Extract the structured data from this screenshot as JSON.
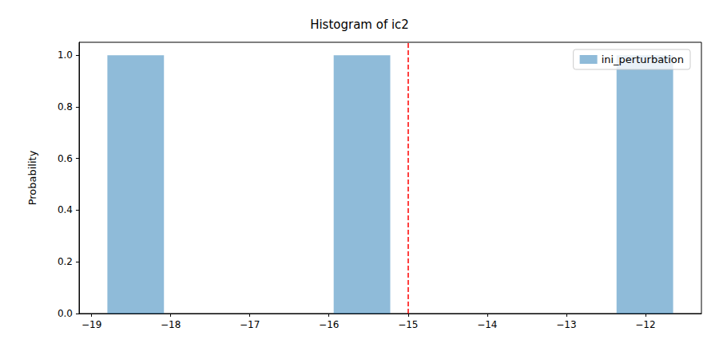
{
  "chart_data": {
    "type": "histogram",
    "title": "Histogram of ic2",
    "y_label": "Probability",
    "bins": [
      -18.8,
      -18.085,
      -17.37,
      -16.655,
      -15.94,
      -15.225,
      -14.51,
      -13.795,
      -13.08,
      -12.365,
      -11.65
    ],
    "series": [
      {
        "name": "ini_perturbation",
        "color": "#1f77b4",
        "values": [
          1,
          0,
          0,
          0,
          1,
          0,
          0,
          0,
          0,
          1
        ]
      }
    ],
    "reference_line": {
      "x": -15,
      "color": "#ff0000",
      "line_style": "dashed"
    },
    "xlim": [
      -19.1575,
      -11.2925
    ],
    "xticks": [
      {
        "value": -19,
        "label": "−19"
      },
      {
        "value": -18,
        "label": "−18"
      },
      {
        "value": -17,
        "label": "−17"
      },
      {
        "value": -16,
        "label": "−16"
      },
      {
        "value": -15,
        "label": "−15"
      },
      {
        "value": -14,
        "label": "−14"
      },
      {
        "value": -13,
        "label": "−13"
      },
      {
        "value": -12,
        "label": "−12"
      }
    ],
    "ylim": [
      0,
      1.05
    ],
    "yticks": [
      {
        "value": 0,
        "label": "0.0"
      },
      0.2,
      0.4,
      0.6,
      0.8,
      {
        "value": 1,
        "label": "1.0"
      }
    ],
    "legend": "upper right",
    "grid": false
  }
}
